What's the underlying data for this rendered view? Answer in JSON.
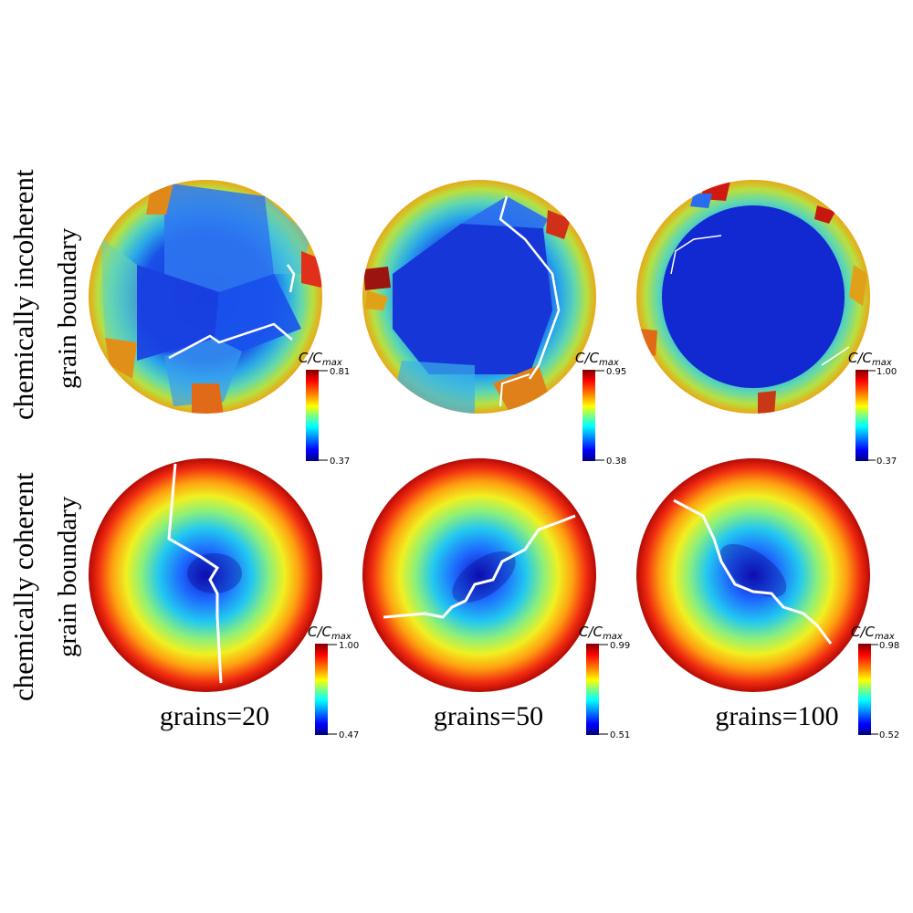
{
  "rows": [
    {
      "title_line1": "chemically incoherent",
      "title_line2": "grain boundary"
    },
    {
      "title_line1": "chemically coherent",
      "title_line2": "grain boundary"
    }
  ],
  "columns": [
    {
      "label": "grains=20"
    },
    {
      "label": "grains=50"
    },
    {
      "label": "grains=100"
    }
  ],
  "colorbar": {
    "title": "C/C",
    "title_sub": "max",
    "colormap": [
      "#7f0000",
      "#ff0000",
      "#ff8c00",
      "#ffff00",
      "#7fff7f",
      "#00ffff",
      "#0080ff",
      "#0000ff",
      "#00007f"
    ]
  },
  "panels": [
    {
      "id": "incoherent-20",
      "colorbar_max": "0.81",
      "colorbar_min": "0.37"
    },
    {
      "id": "incoherent-50",
      "colorbar_max": "0.95",
      "colorbar_min": "0.38"
    },
    {
      "id": "incoherent-100",
      "colorbar_max": "1.00",
      "colorbar_min": "0.37"
    },
    {
      "id": "coherent-20",
      "colorbar_max": "1.00",
      "colorbar_min": "0.47"
    },
    {
      "id": "coherent-50",
      "colorbar_max": "0.99",
      "colorbar_min": "0.51"
    },
    {
      "id": "coherent-100",
      "colorbar_max": "0.98",
      "colorbar_min": "0.52"
    }
  ]
}
